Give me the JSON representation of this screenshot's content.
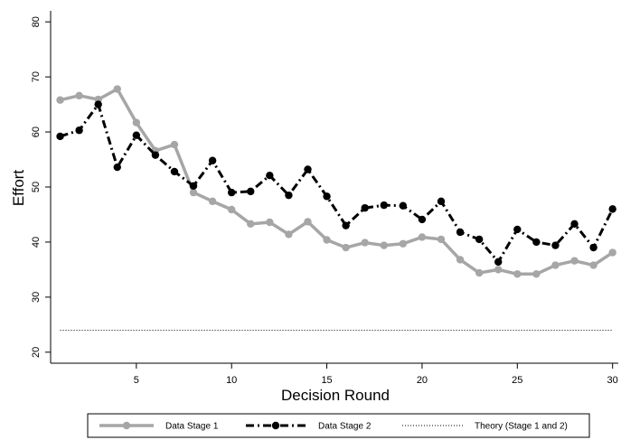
{
  "chart_data": {
    "type": "line",
    "title": "",
    "xlabel": "Decision Round",
    "ylabel": "Effort",
    "xlim": [
      0.5,
      30.3
    ],
    "ylim": [
      18,
      82
    ],
    "xticks": [
      5,
      10,
      15,
      20,
      25,
      30
    ],
    "yticks": [
      20,
      30,
      40,
      50,
      60,
      70,
      80
    ],
    "grid": false,
    "legend_position": "bottom",
    "x": [
      1,
      2,
      3,
      4,
      5,
      6,
      7,
      8,
      9,
      10,
      11,
      12,
      13,
      14,
      15,
      16,
      17,
      18,
      19,
      20,
      21,
      22,
      23,
      24,
      25,
      26,
      27,
      28,
      29,
      30
    ],
    "series": [
      {
        "name": "Data Stage 1",
        "style": "solid",
        "marker": "circle",
        "color": "#a6a6a6",
        "values": [
          65.8,
          66.6,
          65.9,
          67.8,
          61.7,
          56.6,
          57.7,
          49.0,
          47.4,
          45.9,
          43.3,
          43.6,
          41.4,
          43.7,
          40.4,
          39.0,
          39.9,
          39.4,
          39.7,
          40.9,
          40.5,
          36.8,
          34.4,
          35.0,
          34.2,
          34.2,
          35.8,
          36.6,
          35.8,
          38.1
        ]
      },
      {
        "name": "Data Stage 2",
        "style": "dash-dot",
        "marker": "circle",
        "color": "#000000",
        "values": [
          59.2,
          60.3,
          65.0,
          53.6,
          59.4,
          55.8,
          52.8,
          50.2,
          54.8,
          49.0,
          49.2,
          52.1,
          48.5,
          53.2,
          48.3,
          43.0,
          46.2,
          46.7,
          46.6,
          44.1,
          47.4,
          41.8,
          40.5,
          36.4,
          42.3,
          40.0,
          39.4,
          43.3,
          39.0,
          46.0
        ]
      },
      {
        "name": "Theory (Stage 1 and 2)",
        "style": "dotted",
        "marker": "none",
        "color": "#000000",
        "values": [
          24,
          24,
          24,
          24,
          24,
          24,
          24,
          24,
          24,
          24,
          24,
          24,
          24,
          24,
          24,
          24,
          24,
          24,
          24,
          24,
          24,
          24,
          24,
          24,
          24,
          24,
          24,
          24,
          24,
          24
        ]
      }
    ]
  }
}
